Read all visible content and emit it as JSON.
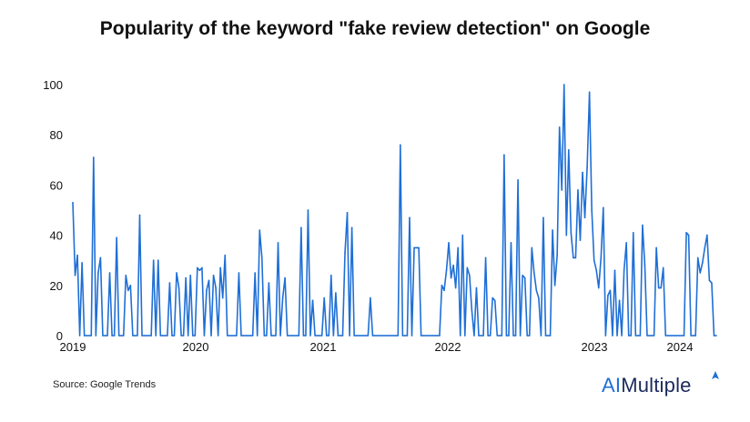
{
  "chart_data": {
    "type": "line",
    "title": "Popularity of the keyword \"fake review detection\" on Google",
    "xlabel": "",
    "ylabel": "",
    "ylim": [
      0,
      100
    ],
    "y_ticks": [
      "0",
      "20",
      "40",
      "60",
      "80",
      "100"
    ],
    "x_ticks": [
      "2019",
      "2020",
      "2021",
      "2022",
      "2023",
      "2024"
    ],
    "grid": false,
    "line_color": "#1f6fd6",
    "series": [
      {
        "values": [
          53,
          24,
          32,
          0,
          29,
          0,
          0,
          0,
          0,
          71,
          0,
          25,
          31,
          0,
          0,
          0,
          25,
          0,
          0,
          39,
          0,
          0,
          0,
          24,
          18,
          20,
          0,
          0,
          0,
          48,
          0,
          0,
          0,
          0,
          0,
          30,
          0,
          30,
          0,
          0,
          0,
          0,
          21,
          0,
          0,
          25,
          19,
          0,
          0,
          23,
          0,
          24,
          0,
          0,
          27,
          26,
          27,
          0,
          18,
          22,
          0,
          24,
          19,
          0,
          27,
          15,
          32,
          0,
          0,
          0,
          0,
          0,
          25,
          0,
          0,
          0,
          0,
          0,
          0,
          25,
          0,
          42,
          31,
          0,
          0,
          21,
          0,
          0,
          0,
          37,
          0,
          15,
          23,
          0,
          0,
          0,
          0,
          0,
          0,
          43,
          0,
          0,
          50,
          0,
          14,
          0,
          0,
          0,
          0,
          15,
          0,
          0,
          24,
          0,
          17,
          0,
          0,
          0,
          33,
          49,
          0,
          43,
          0,
          0,
          0,
          0,
          0,
          0,
          0,
          15,
          0,
          0,
          0,
          0,
          0,
          0,
          0,
          0,
          0,
          0,
          0,
          0,
          76,
          0,
          0,
          0,
          47,
          0,
          35,
          35,
          35,
          0,
          0,
          0,
          0,
          0,
          0,
          0,
          0,
          0,
          20,
          18,
          26,
          37,
          23,
          28,
          19,
          35,
          0,
          40,
          0,
          27,
          24,
          10,
          0,
          19,
          0,
          0,
          0,
          31,
          0,
          0,
          15,
          14,
          0,
          0,
          0,
          72,
          0,
          0,
          37,
          0,
          0,
          62,
          0,
          24,
          23,
          0,
          0,
          35,
          25,
          18,
          15,
          0,
          47,
          0,
          0,
          0,
          42,
          20,
          32,
          83,
          58,
          100,
          40,
          74,
          41,
          31,
          31,
          58,
          38,
          65,
          47,
          67,
          97,
          50,
          30,
          26,
          19,
          31,
          51,
          0,
          16,
          18,
          0,
          26,
          0,
          14,
          0,
          26,
          37,
          0,
          0,
          41,
          0,
          0,
          0,
          44,
          28,
          0,
          0,
          0,
          0,
          35,
          19,
          19,
          27,
          0,
          0,
          0,
          0,
          0,
          0,
          0,
          0,
          0,
          41,
          40,
          0,
          0,
          0,
          31,
          25,
          29,
          35,
          40,
          22,
          21,
          0,
          0
        ]
      }
    ]
  },
  "footer": {
    "source": "Source: Google Trends",
    "brand_ai": "AI",
    "brand_rest": "Multiple"
  }
}
